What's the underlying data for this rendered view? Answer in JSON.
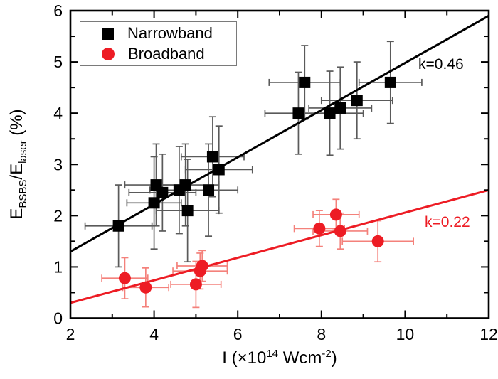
{
  "figure": {
    "background": "#ffffff",
    "frame_color": "#000000",
    "legend": {
      "entries": [
        {
          "label": "Narrowband",
          "marker": "square",
          "color": "#000000"
        },
        {
          "label": "Broadband",
          "marker": "circle",
          "color": "#ed1c24"
        }
      ]
    },
    "annotations": [
      {
        "text": "k=0.46",
        "color": "#000000"
      },
      {
        "text": "k=0.22",
        "color": "#ed1c24"
      }
    ],
    "xlabel_parts": {
      "p1": "I (×10",
      "sup1": "14",
      "p2": " Wcm",
      "sup2": "-2",
      "p3": ")"
    },
    "ylabel_parts": {
      "p1": "E",
      "sub1": "BSBS",
      "p2": "/E",
      "sub2": "laser",
      "p3": " (%)"
    }
  },
  "chart_data": {
    "type": "scatter",
    "title": "",
    "xlabel": "I (×10^14 Wcm^-2)",
    "ylabel": "E_BSBS/E_laser (%)",
    "xlim": [
      2,
      12
    ],
    "ylim": [
      0,
      6
    ],
    "x_major_ticks": [
      2,
      4,
      6,
      8,
      10,
      12
    ],
    "x_minor_ticks": [
      3,
      5,
      7,
      9,
      11
    ],
    "y_major_ticks": [
      0,
      1,
      2,
      3,
      4,
      5,
      6
    ],
    "y_minor_ticks": [
      0.5,
      1.5,
      2.5,
      3.5,
      4.5,
      5.5
    ],
    "grid": false,
    "legend_position": "top-left",
    "series": [
      {
        "name": "Narrowband",
        "marker": "square",
        "color": "#000000",
        "errorbar_color": "#5a5a5a",
        "points": [
          {
            "x": 3.15,
            "y": 1.8,
            "ex": 0.8,
            "ey": 0.8
          },
          {
            "x": 4.0,
            "y": 2.25,
            "ex": 0.65,
            "ey": 0.9
          },
          {
            "x": 4.05,
            "y": 2.6,
            "ex": 0.75,
            "ey": 0.8
          },
          {
            "x": 4.2,
            "y": 2.45,
            "ex": 0.8,
            "ey": 0.75
          },
          {
            "x": 4.6,
            "y": 2.5,
            "ex": 0.7,
            "ey": 0.85
          },
          {
            "x": 4.75,
            "y": 2.6,
            "ex": 0.8,
            "ey": 0.8
          },
          {
            "x": 4.8,
            "y": 2.1,
            "ex": 0.75,
            "ey": 1.0
          },
          {
            "x": 5.3,
            "y": 2.5,
            "ex": 0.7,
            "ey": 0.9
          },
          {
            "x": 5.4,
            "y": 3.15,
            "ex": 0.75,
            "ey": 0.78
          },
          {
            "x": 5.55,
            "y": 2.9,
            "ex": 0.8,
            "ey": 0.85
          },
          {
            "x": 7.45,
            "y": 4.0,
            "ex": 0.8,
            "ey": 0.8
          },
          {
            "x": 7.6,
            "y": 4.6,
            "ex": 0.85,
            "ey": 0.72
          },
          {
            "x": 8.2,
            "y": 4.0,
            "ex": 0.8,
            "ey": 0.82
          },
          {
            "x": 8.45,
            "y": 4.1,
            "ex": 0.75,
            "ey": 0.8
          },
          {
            "x": 8.85,
            "y": 4.25,
            "ex": 0.85,
            "ey": 0.75
          },
          {
            "x": 9.65,
            "y": 4.6,
            "ex": 0.75,
            "ey": 0.8
          }
        ]
      },
      {
        "name": "Broadband",
        "marker": "circle",
        "color": "#ed1c24",
        "errorbar_color": "#f4817b",
        "points": [
          {
            "x": 3.3,
            "y": 0.78,
            "ex": 0.55,
            "ey": 0.4
          },
          {
            "x": 3.8,
            "y": 0.6,
            "ex": 0.55,
            "ey": 0.38
          },
          {
            "x": 5.0,
            "y": 0.66,
            "ex": 0.6,
            "ey": 0.45
          },
          {
            "x": 5.1,
            "y": 0.92,
            "ex": 0.65,
            "ey": 0.35
          },
          {
            "x": 5.15,
            "y": 1.02,
            "ex": 0.6,
            "ey": 0.3
          },
          {
            "x": 7.95,
            "y": 1.75,
            "ex": 0.6,
            "ey": 0.35
          },
          {
            "x": 8.35,
            "y": 2.02,
            "ex": 0.55,
            "ey": 0.3
          },
          {
            "x": 8.45,
            "y": 1.7,
            "ex": 0.65,
            "ey": 0.35
          },
          {
            "x": 9.35,
            "y": 1.5,
            "ex": 0.85,
            "ey": 0.4
          }
        ]
      }
    ],
    "fit_lines": [
      {
        "name": "Narrowband fit",
        "color": "#000000",
        "slope": 0.46,
        "slope_label": "k=0.46",
        "x1": 2,
        "y1": 1.3,
        "x2": 12,
        "y2": 5.9
      },
      {
        "name": "Broadband fit",
        "color": "#ed1c24",
        "slope": 0.22,
        "slope_label": "k=0.22",
        "x1": 2,
        "y1": 0.3,
        "x2": 12,
        "y2": 2.5
      }
    ]
  }
}
